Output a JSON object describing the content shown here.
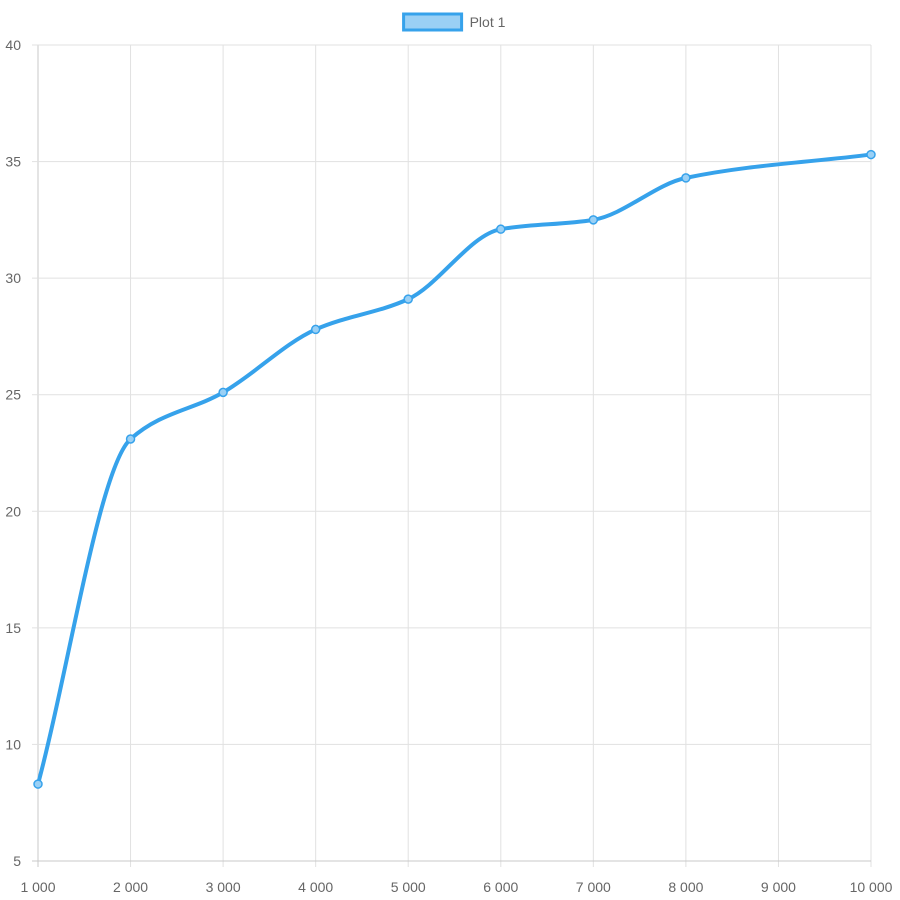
{
  "chart_data": {
    "type": "line",
    "legend": {
      "position": "top-center",
      "visible": true
    },
    "grid": true,
    "x": [
      1000,
      2000,
      3000,
      4000,
      5000,
      6000,
      7000,
      8000,
      9000,
      10000
    ],
    "x_tick_labels": [
      "1 000",
      "2 000",
      "3 000",
      "4 000",
      "5 000",
      "6 000",
      "7 000",
      "8 000",
      "9 000",
      "10 000"
    ],
    "xlim": [
      1000,
      10000
    ],
    "y_ticks": [
      5,
      10,
      15,
      20,
      25,
      30,
      35,
      40
    ],
    "y_tick_labels": [
      "5",
      "10",
      "15",
      "20",
      "25",
      "30",
      "35",
      "40"
    ],
    "ylim": [
      5,
      40
    ],
    "series": [
      {
        "name": "Plot 1",
        "x": [
          1000,
          2000,
          3000,
          4000,
          5000,
          6000,
          7000,
          8000,
          10000
        ],
        "values": [
          8.3,
          23.1,
          25.1,
          27.8,
          29.1,
          32.1,
          32.5,
          34.3,
          35.3
        ],
        "color": "#36a2eb",
        "fill_color": "#9ad0f5",
        "smooth": true
      }
    ]
  }
}
